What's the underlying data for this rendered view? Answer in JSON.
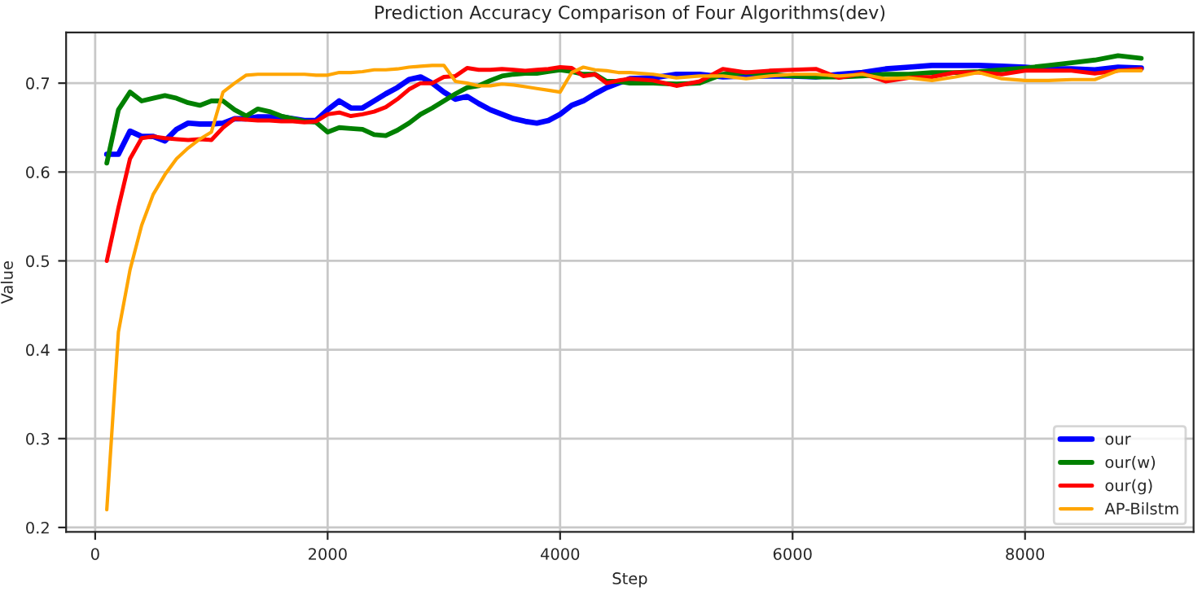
{
  "chart_data": {
    "type": "line",
    "title": "Prediction Accuracy Comparison of Four Algorithms(dev)",
    "xlabel": "Step",
    "ylabel": "Value",
    "x": [
      100,
      200,
      300,
      400,
      500,
      600,
      700,
      800,
      900,
      1000,
      1100,
      1200,
      1300,
      1400,
      1500,
      1600,
      1700,
      1800,
      1900,
      2000,
      2100,
      2200,
      2300,
      2400,
      2500,
      2600,
      2700,
      2800,
      2900,
      3000,
      3100,
      3200,
      3300,
      3400,
      3500,
      3600,
      3700,
      3800,
      3900,
      4000,
      4100,
      4200,
      4300,
      4400,
      4500,
      4600,
      4800,
      5000,
      5200,
      5400,
      5600,
      5800,
      6000,
      6200,
      6400,
      6600,
      6800,
      7000,
      7200,
      7400,
      7600,
      7800,
      8000,
      8200,
      8400,
      8600,
      8800,
      9000
    ],
    "series": [
      {
        "name": "our",
        "color": "#0000ff",
        "values": [
          0.62,
          0.62,
          0.646,
          0.64,
          0.64,
          0.635,
          0.648,
          0.655,
          0.654,
          0.654,
          0.655,
          0.66,
          0.66,
          0.662,
          0.662,
          0.662,
          0.66,
          0.658,
          0.658,
          0.67,
          0.68,
          0.672,
          0.672,
          0.68,
          0.688,
          0.695,
          0.704,
          0.707,
          0.7,
          0.69,
          0.682,
          0.685,
          0.677,
          0.67,
          0.665,
          0.66,
          0.657,
          0.655,
          0.658,
          0.665,
          0.675,
          0.68,
          0.688,
          0.695,
          0.7,
          0.705,
          0.706,
          0.71,
          0.71,
          0.707,
          0.708,
          0.708,
          0.708,
          0.707,
          0.71,
          0.712,
          0.716,
          0.718,
          0.72,
          0.72,
          0.72,
          0.719,
          0.718,
          0.716,
          0.716,
          0.715,
          0.718,
          0.717
        ]
      },
      {
        "name": "our(w)",
        "color": "#008000",
        "values": [
          0.61,
          0.67,
          0.69,
          0.68,
          0.683,
          0.686,
          0.683,
          0.678,
          0.675,
          0.68,
          0.68,
          0.67,
          0.663,
          0.671,
          0.668,
          0.663,
          0.66,
          0.657,
          0.656,
          0.645,
          0.65,
          0.649,
          0.648,
          0.642,
          0.641,
          0.647,
          0.655,
          0.665,
          0.672,
          0.68,
          0.688,
          0.695,
          0.697,
          0.703,
          0.708,
          0.71,
          0.711,
          0.711,
          0.713,
          0.715,
          0.713,
          0.71,
          0.71,
          0.702,
          0.702,
          0.7,
          0.7,
          0.699,
          0.7,
          0.71,
          0.712,
          0.71,
          0.708,
          0.707,
          0.707,
          0.708,
          0.71,
          0.71,
          0.712,
          0.712,
          0.713,
          0.715,
          0.717,
          0.72,
          0.723,
          0.726,
          0.731,
          0.728
        ]
      },
      {
        "name": "our(g)",
        "color": "#ff0000",
        "values": [
          0.5,
          0.56,
          0.615,
          0.638,
          0.64,
          0.638,
          0.637,
          0.636,
          0.637,
          0.636,
          0.65,
          0.66,
          0.659,
          0.658,
          0.658,
          0.657,
          0.657,
          0.656,
          0.657,
          0.665,
          0.667,
          0.663,
          0.665,
          0.668,
          0.673,
          0.682,
          0.693,
          0.7,
          0.7,
          0.707,
          0.708,
          0.717,
          0.715,
          0.715,
          0.716,
          0.715,
          0.714,
          0.715,
          0.716,
          0.718,
          0.717,
          0.708,
          0.71,
          0.7,
          0.703,
          0.705,
          0.703,
          0.697,
          0.702,
          0.716,
          0.712,
          0.714,
          0.715,
          0.716,
          0.706,
          0.711,
          0.702,
          0.706,
          0.707,
          0.712,
          0.712,
          0.71,
          0.714,
          0.714,
          0.714,
          0.711,
          0.714,
          0.716
        ]
      },
      {
        "name": "AP-Bilstm",
        "color": "#ffa500",
        "values": [
          0.22,
          0.42,
          0.49,
          0.54,
          0.575,
          0.597,
          0.615,
          0.627,
          0.637,
          0.645,
          0.69,
          0.7,
          0.709,
          0.71,
          0.71,
          0.71,
          0.71,
          0.71,
          0.709,
          0.709,
          0.712,
          0.712,
          0.713,
          0.715,
          0.715,
          0.716,
          0.718,
          0.719,
          0.72,
          0.72,
          0.702,
          0.7,
          0.697,
          0.697,
          0.699,
          0.698,
          0.696,
          0.694,
          0.692,
          0.69,
          0.712,
          0.718,
          0.715,
          0.714,
          0.712,
          0.712,
          0.71,
          0.706,
          0.708,
          0.708,
          0.705,
          0.708,
          0.71,
          0.71,
          0.708,
          0.71,
          0.705,
          0.706,
          0.703,
          0.707,
          0.712,
          0.705,
          0.703,
          0.703,
          0.704,
          0.704,
          0.714,
          0.714
        ]
      }
    ],
    "xlim": [
      -250,
      9450
    ],
    "ylim": [
      0.195,
      0.757
    ],
    "xticks": [
      0,
      2000,
      4000,
      6000,
      8000
    ],
    "yticks": [
      0.2,
      0.3,
      0.4,
      0.5,
      0.6,
      0.7
    ],
    "grid": true,
    "legend": "lower right",
    "line_style": "solid",
    "marker": "none"
  }
}
